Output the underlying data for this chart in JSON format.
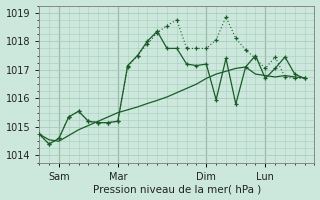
{
  "background_color": "#cce8dc",
  "grid_color": "#a8ccbc",
  "line_color": "#1a5c28",
  "xlabel": "Pression niveau de la mer( hPa )",
  "ylim": [
    1013.75,
    1019.25
  ],
  "yticks": [
    1014,
    1015,
    1016,
    1017,
    1018,
    1019
  ],
  "xlim": [
    0,
    28
  ],
  "xtick_positions": [
    2,
    8,
    17,
    23
  ],
  "xtick_labels": [
    "Sam",
    "Mar",
    "Dim",
    "Lun"
  ],
  "vline_positions": [
    2,
    8,
    17,
    23
  ],
  "smooth_x": [
    0,
    1,
    2,
    3,
    4,
    5,
    6,
    7,
    8,
    9,
    10,
    11,
    12,
    13,
    14,
    15,
    16,
    17,
    18,
    19,
    20,
    21,
    22,
    23,
    24,
    25,
    26,
    27
  ],
  "smooth_y": [
    1014.75,
    1014.55,
    1014.5,
    1014.7,
    1014.9,
    1015.05,
    1015.2,
    1015.35,
    1015.5,
    1015.6,
    1015.7,
    1015.82,
    1015.93,
    1016.05,
    1016.2,
    1016.35,
    1016.5,
    1016.7,
    1016.85,
    1016.95,
    1017.05,
    1017.1,
    1016.85,
    1016.8,
    1016.75,
    1016.8,
    1016.75,
    1016.72
  ],
  "dotted_x": [
    0,
    1,
    2,
    3,
    4,
    5,
    6,
    7,
    8,
    9,
    10,
    11,
    12,
    13,
    14,
    15,
    16,
    17,
    18,
    19,
    20,
    21,
    22,
    23,
    24,
    25,
    26,
    27
  ],
  "dotted_y": [
    1014.75,
    1014.4,
    1014.6,
    1015.35,
    1015.55,
    1015.2,
    1015.15,
    1015.15,
    1015.2,
    1017.1,
    1017.5,
    1017.9,
    1018.3,
    1018.55,
    1018.75,
    1017.75,
    1017.75,
    1017.75,
    1018.05,
    1018.85,
    1018.1,
    1017.7,
    1017.4,
    1017.05,
    1017.45,
    1016.75,
    1016.7,
    1016.7
  ],
  "solid_x": [
    0,
    1,
    2,
    3,
    4,
    5,
    6,
    7,
    8,
    9,
    10,
    11,
    12,
    13,
    14,
    15,
    16,
    17,
    18,
    19,
    20,
    21,
    22,
    23,
    24,
    25,
    26,
    27
  ],
  "solid_y": [
    1014.75,
    1014.4,
    1014.6,
    1015.35,
    1015.55,
    1015.2,
    1015.15,
    1015.15,
    1015.2,
    1017.15,
    1017.5,
    1018.0,
    1018.35,
    1017.75,
    1017.75,
    1017.2,
    1017.15,
    1017.2,
    1015.95,
    1017.4,
    1015.8,
    1017.1,
    1017.5,
    1016.7,
    1017.05,
    1017.45,
    1016.85,
    1016.7
  ]
}
